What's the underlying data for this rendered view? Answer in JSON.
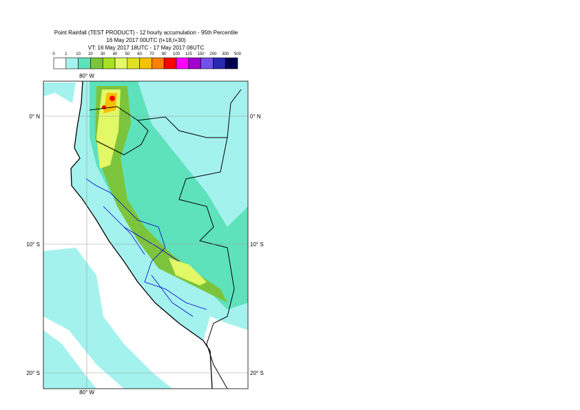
{
  "header": {
    "lines": [
      "Point Rainfall (TEST PRODUCT) - 12 hourly accumulation - 95th Percentile",
      "16 May 2017 00UTC (t+18,t+30)",
      "VT: 16 May 2017 18UTC - 17 May 2017 06UTC"
    ]
  },
  "legend": {
    "bounds": [
      0,
      1,
      10,
      20,
      30,
      40,
      50,
      60,
      70,
      80,
      100,
      125,
      150,
      200,
      300,
      500
    ],
    "colors": [
      "#ffffff",
      "#a4f2ee",
      "#5ee2bc",
      "#7cc43c",
      "#a6e020",
      "#e2f866",
      "#e0e024",
      "#f8c000",
      "#ff8000",
      "#ff0000",
      "#ff00ff",
      "#a000d0",
      "#7050f0",
      "#2828b0",
      "#000050"
    ]
  },
  "map": {
    "lon_labels": [
      "80° W"
    ],
    "lat_labels": [
      "0° N",
      "10° S",
      "20° S"
    ]
  }
}
